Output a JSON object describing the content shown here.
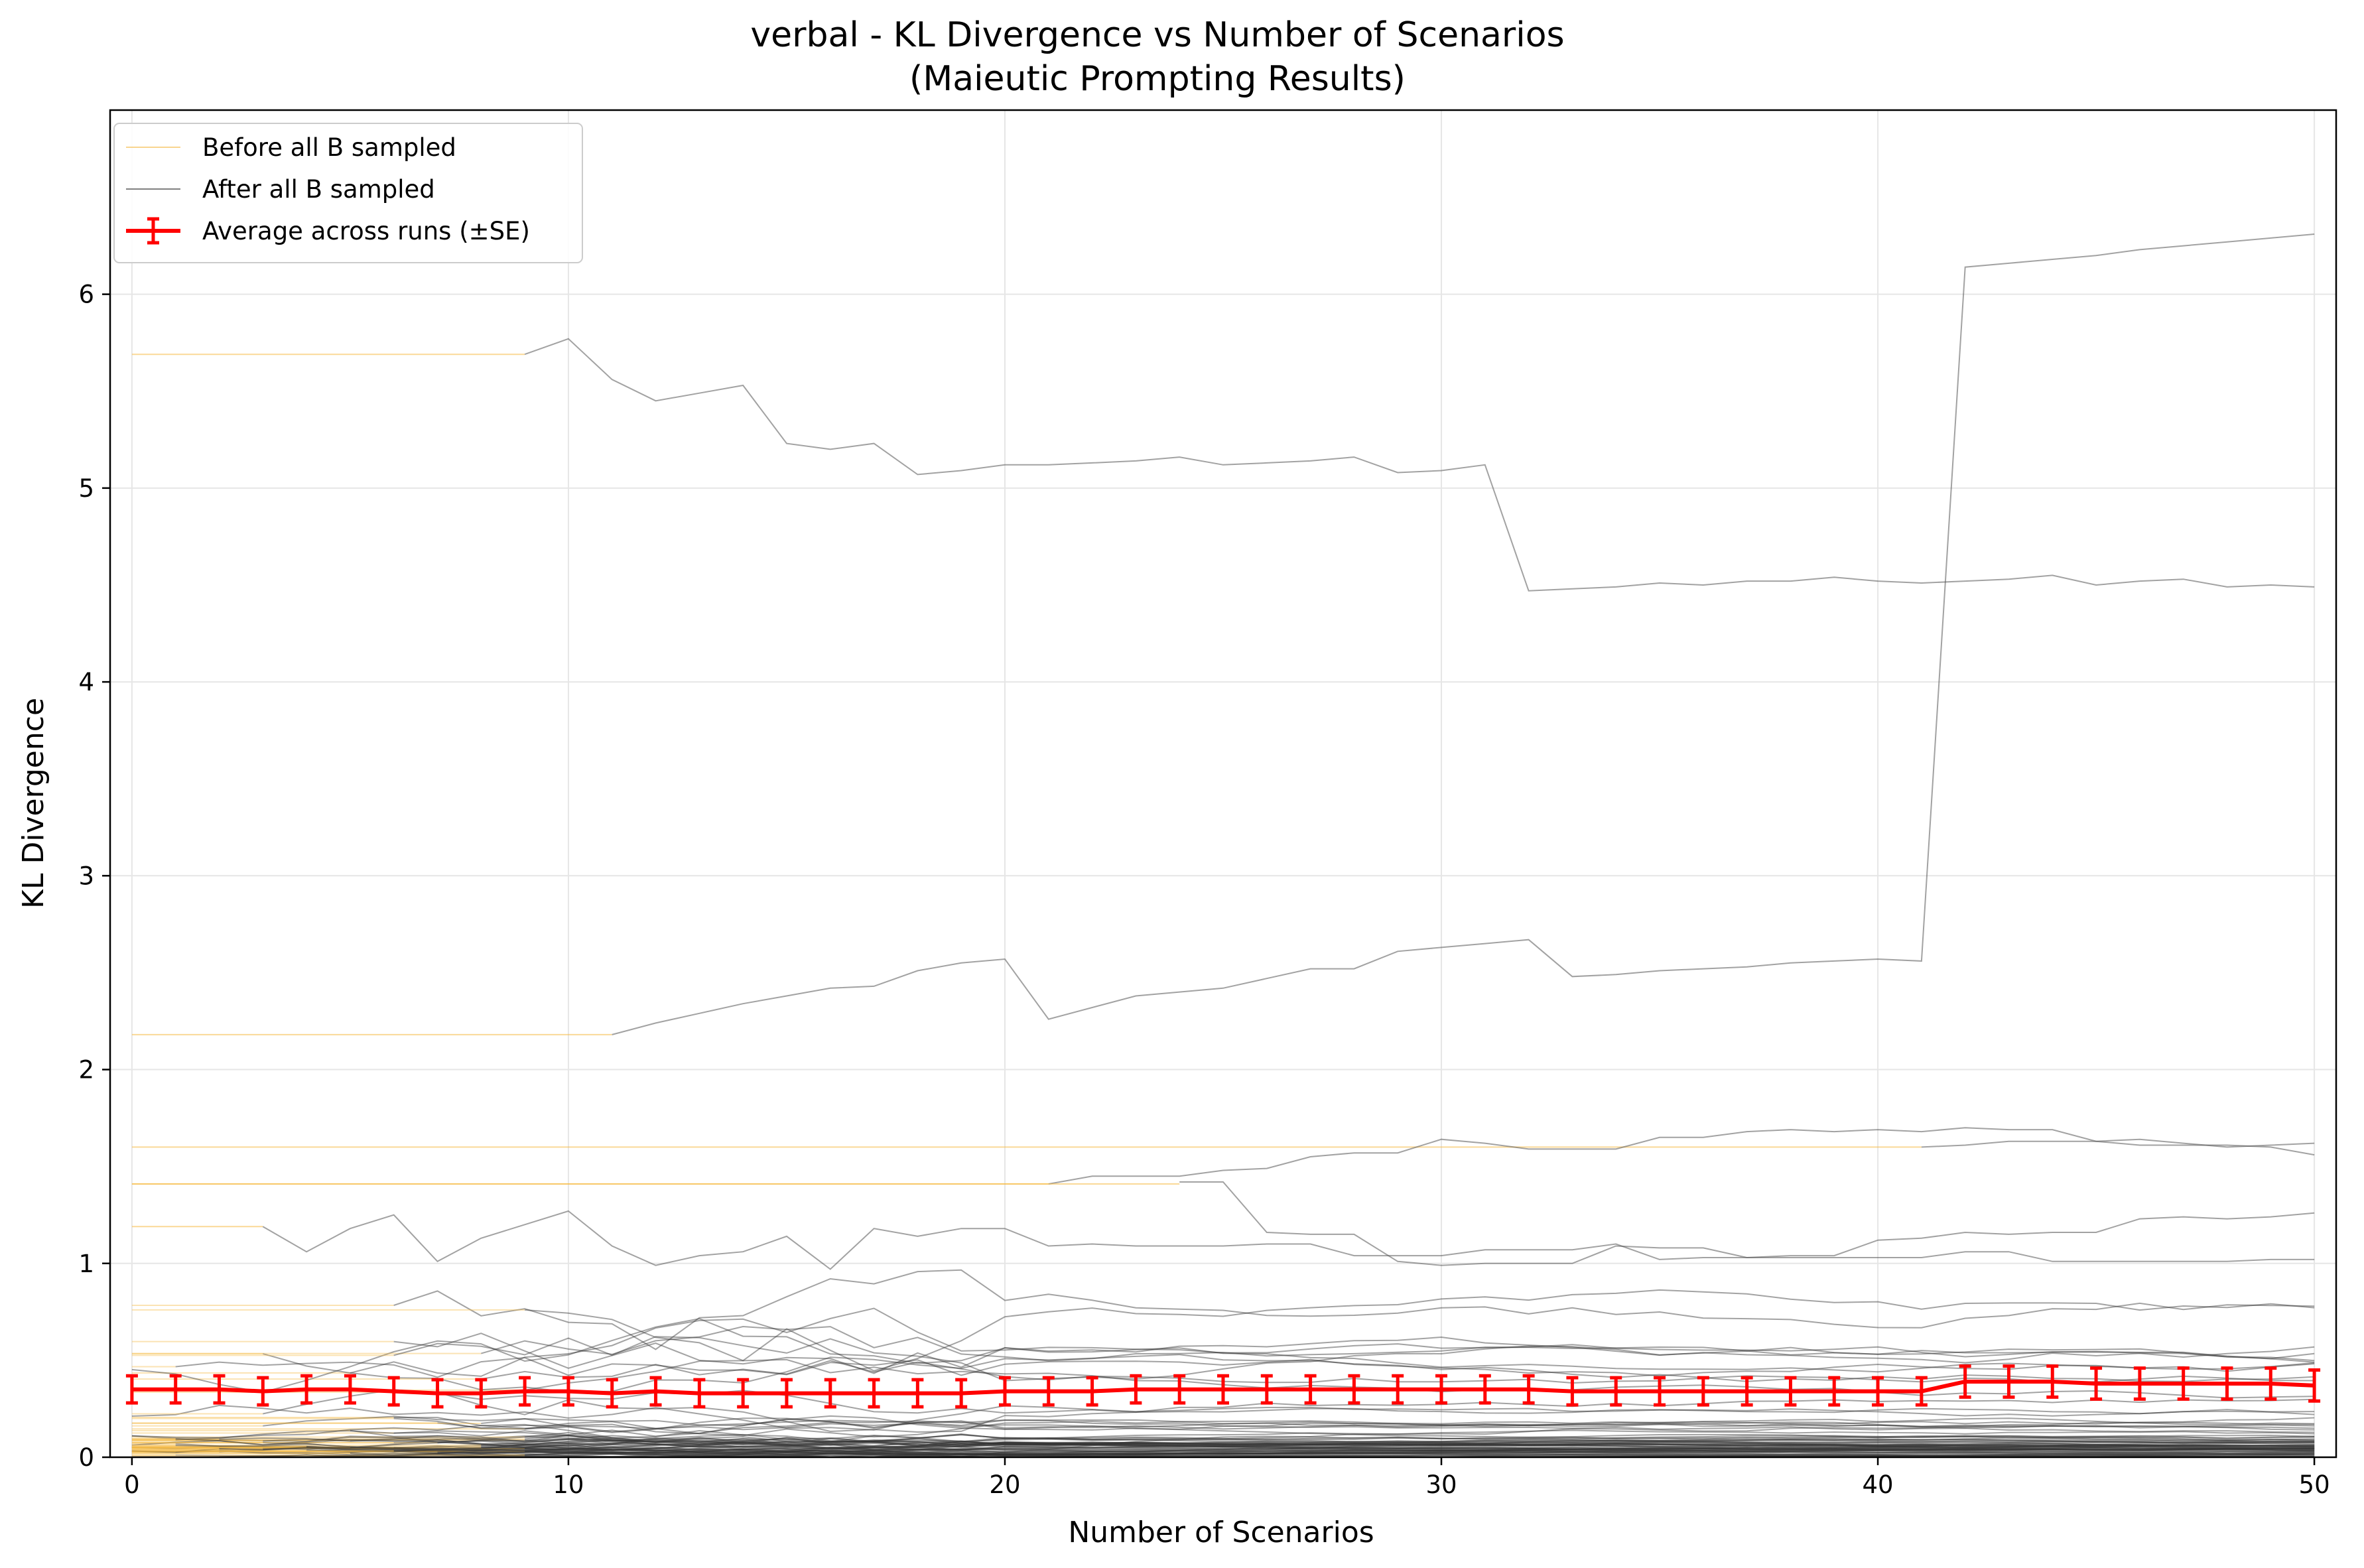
{
  "chart_data": {
    "type": "line",
    "title": "verbal - KL Divergence vs Number of Scenarios",
    "subtitle": "(Maieutic Prompting Results)",
    "xlabel": "Number of Scenarios",
    "ylabel": "KL Divergence",
    "xlim": [
      -0.5,
      50.5
    ],
    "ylim": [
      0,
      6.95
    ],
    "xticks": [
      0,
      10,
      20,
      30,
      40,
      50
    ],
    "yticks": [
      0,
      1,
      2,
      3,
      4,
      5,
      6
    ],
    "xtick_labels": [
      "0",
      "10",
      "20",
      "30",
      "40",
      "50"
    ],
    "ytick_labels": [
      "0",
      "1",
      "2",
      "3",
      "4",
      "5",
      "6"
    ],
    "grid": true,
    "legend_position": "upper-left",
    "legend": [
      {
        "label": "Before all B sampled",
        "color": "#f5b942",
        "style": "thin-line"
      },
      {
        "label": "After all B sampled",
        "color": "#808080",
        "style": "thin-line"
      },
      {
        "label": "Average across runs (±SE)",
        "color": "#ff0000",
        "style": "errorbar-line"
      }
    ],
    "colors": {
      "before": "#f5b942",
      "after": "#555555",
      "average": "#ff0000"
    },
    "highlighted_runs": [
      {
        "before": {
          "x": [
            0,
            9
          ],
          "y": [
            5.69,
            5.69
          ]
        },
        "after": {
          "x": [
            9,
            10,
            11,
            12,
            13,
            14,
            15,
            16,
            17,
            18,
            19,
            20,
            21,
            22,
            23,
            24,
            25,
            26,
            27,
            28,
            29,
            30,
            31,
            32,
            33,
            34,
            35,
            36,
            37,
            38,
            39,
            40,
            41,
            42,
            43,
            44,
            45,
            46,
            47,
            48,
            49,
            50
          ],
          "y": [
            5.69,
            5.77,
            5.56,
            5.45,
            5.49,
            5.53,
            5.23,
            5.2,
            5.23,
            5.07,
            5.09,
            5.12,
            5.12,
            5.13,
            5.14,
            5.16,
            5.12,
            5.13,
            5.14,
            5.16,
            5.08,
            5.09,
            5.12,
            4.47,
            4.48,
            4.49,
            4.51,
            4.5,
            4.52,
            4.52,
            4.54,
            4.52,
            4.51,
            4.52,
            4.53,
            4.55,
            4.5,
            4.52,
            4.53,
            4.49,
            4.5,
            4.49
          ]
        }
      },
      {
        "before": {
          "x": [
            0,
            11
          ],
          "y": [
            2.18,
            2.18
          ]
        },
        "after": {
          "x": [
            11,
            12,
            13,
            14,
            15,
            16,
            17,
            18,
            19,
            20,
            21,
            22,
            23,
            24,
            25,
            26,
            27,
            28,
            29,
            30,
            31,
            32,
            33,
            34,
            35,
            36,
            37,
            38,
            39,
            40,
            41,
            42,
            43,
            44,
            45,
            46,
            47,
            48,
            49,
            50
          ],
          "y": [
            2.18,
            2.24,
            2.29,
            2.34,
            2.38,
            2.42,
            2.43,
            2.51,
            2.55,
            2.57,
            2.26,
            2.32,
            2.38,
            2.4,
            2.42,
            2.47,
            2.52,
            2.52,
            2.61,
            2.63,
            2.65,
            2.67,
            2.48,
            2.49,
            2.51,
            2.52,
            2.53,
            2.55,
            2.56,
            2.57,
            2.56,
            6.14,
            6.16,
            6.18,
            6.2,
            6.23,
            6.25,
            6.27,
            6.29,
            6.31
          ]
        }
      },
      {
        "before": {
          "x": [
            0,
            41
          ],
          "y": [
            1.6,
            1.6
          ]
        },
        "after": {
          "x": [
            41,
            42,
            43,
            44,
            45,
            46,
            47,
            48,
            49,
            50
          ],
          "y": [
            1.6,
            1.61,
            1.63,
            1.63,
            1.63,
            1.64,
            1.62,
            1.6,
            1.61,
            1.62
          ]
        }
      },
      {
        "before": {
          "x": [
            0,
            21
          ],
          "y": [
            1.41,
            1.41
          ]
        },
        "after": {
          "x": [
            21,
            22,
            23,
            24,
            25,
            26,
            27,
            28,
            29,
            30,
            31,
            32,
            33,
            34,
            35,
            36,
            37,
            38,
            39,
            40,
            41,
            42,
            43,
            44,
            45,
            46,
            47,
            48,
            49,
            50
          ],
          "y": [
            1.41,
            1.45,
            1.45,
            1.45,
            1.48,
            1.49,
            1.55,
            1.57,
            1.57,
            1.64,
            1.62,
            1.59,
            1.59,
            1.59,
            1.65,
            1.65,
            1.68,
            1.69,
            1.68,
            1.69,
            1.68,
            1.7,
            1.69,
            1.69,
            1.63,
            1.61,
            1.61,
            1.61,
            1.6,
            1.56
          ]
        }
      },
      {
        "before": {
          "x": [
            0,
            3
          ],
          "y": [
            1.19,
            1.19
          ]
        },
        "after": {
          "x": [
            3,
            4,
            5,
            6,
            7,
            8,
            9,
            10,
            11,
            12,
            13,
            14,
            15,
            16,
            17,
            18,
            19,
            20,
            21,
            22,
            23,
            24,
            25,
            26,
            27,
            28,
            29,
            30,
            31,
            32,
            33,
            34,
            35,
            36,
            37,
            38,
            39,
            40,
            41,
            42,
            43,
            44,
            45,
            46,
            47,
            48,
            49,
            50
          ],
          "y": [
            1.19,
            1.06,
            1.18,
            1.25,
            1.01,
            1.13,
            1.2,
            1.27,
            1.09,
            0.99,
            1.04,
            1.06,
            1.14,
            0.97,
            1.18,
            1.14,
            1.18,
            1.18,
            1.09,
            1.1,
            1.09,
            1.09,
            1.09,
            1.1,
            1.1,
            1.04,
            1.04,
            1.04,
            1.07,
            1.07,
            1.07,
            1.1,
            1.02,
            1.03,
            1.03,
            1.04,
            1.04,
            1.12,
            1.13,
            1.16,
            1.15,
            1.16,
            1.16,
            1.23,
            1.24,
            1.23,
            1.24,
            1.26
          ]
        }
      },
      {
        "before": {
          "x": [
            0,
            24
          ],
          "y": [
            1.41,
            1.41
          ]
        },
        "after": {
          "x": [
            24,
            25,
            26,
            27,
            28,
            29,
            30,
            31,
            32,
            33,
            34,
            35,
            36,
            37,
            38,
            39,
            40,
            41,
            42,
            43,
            44,
            45,
            46,
            47,
            48,
            49,
            50
          ],
          "y": [
            1.42,
            1.42,
            1.16,
            1.15,
            1.15,
            1.01,
            0.99,
            1.0,
            1.0,
            1.0,
            1.09,
            1.08,
            1.08,
            1.03,
            1.03,
            1.03,
            1.03,
            1.03,
            1.06,
            1.06,
            1.01,
            1.01,
            1.01,
            1.01,
            1.01,
            1.02,
            1.02
          ]
        }
      }
    ],
    "background_runs_note": "dozens of additional runs clustered between 0 and 1.0 (orange before, gray after)",
    "average": {
      "x": [
        0,
        1,
        2,
        3,
        4,
        5,
        6,
        7,
        8,
        9,
        10,
        11,
        12,
        13,
        14,
        15,
        16,
        17,
        18,
        19,
        20,
        21,
        22,
        23,
        24,
        25,
        26,
        27,
        28,
        29,
        30,
        31,
        32,
        33,
        34,
        35,
        36,
        37,
        38,
        39,
        40,
        41,
        42,
        43,
        44,
        45,
        46,
        47,
        48,
        49,
        50
      ],
      "y": [
        0.35,
        0.35,
        0.35,
        0.34,
        0.35,
        0.35,
        0.34,
        0.33,
        0.33,
        0.34,
        0.34,
        0.33,
        0.34,
        0.33,
        0.33,
        0.33,
        0.33,
        0.33,
        0.33,
        0.33,
        0.34,
        0.34,
        0.34,
        0.35,
        0.35,
        0.35,
        0.35,
        0.35,
        0.35,
        0.35,
        0.35,
        0.35,
        0.35,
        0.34,
        0.34,
        0.34,
        0.34,
        0.34,
        0.34,
        0.34,
        0.34,
        0.34,
        0.39,
        0.39,
        0.39,
        0.38,
        0.38,
        0.38,
        0.38,
        0.38,
        0.37
      ],
      "se": [
        0.07,
        0.07,
        0.07,
        0.07,
        0.07,
        0.07,
        0.07,
        0.07,
        0.07,
        0.07,
        0.07,
        0.07,
        0.07,
        0.07,
        0.07,
        0.07,
        0.07,
        0.07,
        0.07,
        0.07,
        0.07,
        0.07,
        0.07,
        0.07,
        0.07,
        0.07,
        0.07,
        0.07,
        0.07,
        0.07,
        0.07,
        0.07,
        0.07,
        0.07,
        0.07,
        0.07,
        0.07,
        0.07,
        0.07,
        0.07,
        0.07,
        0.07,
        0.08,
        0.08,
        0.08,
        0.08,
        0.08,
        0.08,
        0.08,
        0.08,
        0.08
      ]
    }
  }
}
